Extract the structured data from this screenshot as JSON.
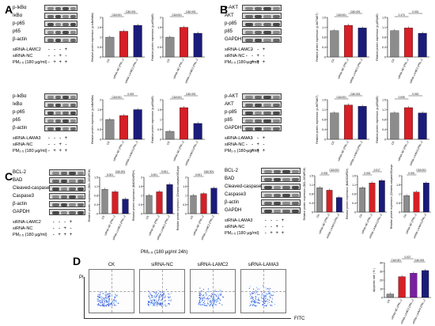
{
  "panels": {
    "A": "A",
    "B": "B",
    "C": "C",
    "D": "D"
  },
  "blots": {
    "a_top": {
      "rows": [
        "p-IκBα",
        "IκBα",
        "p-p65",
        "p65",
        "β-actin"
      ],
      "treatment_labels": [
        "siRNA-LAMC2",
        "siRNA-NC",
        "PM₂.₅ (180 μg/ml)"
      ],
      "treatment_marks": [
        "- - - +",
        "- - + -",
        "- + + +"
      ]
    },
    "a_bottom": {
      "rows": [
        "p-IκBα",
        "IκBα",
        "p-p65",
        "p65",
        "β-actin"
      ],
      "treatment_labels": [
        "siRNA-LAMA3",
        "siRNA-NC",
        "PM₂.₅ (180 μg/ml)"
      ],
      "treatment_marks": [
        "- - - +",
        "- - + -",
        "- + + +"
      ]
    },
    "b_top": {
      "rows": [
        "p-AKT",
        "AKT",
        "p-p85",
        "p85",
        "GAPDH"
      ],
      "treatment_labels": [
        "siRNA-LAMC2",
        "siRNA-NC",
        "PM₂.₅ (180 μg/ml)"
      ],
      "treatment_marks": [
        "- - - +",
        "- - + -",
        "- + + +"
      ]
    },
    "b_bottom": {
      "rows": [
        "p-AKT",
        "AKT",
        "p-p85",
        "p85",
        "GAPDH"
      ],
      "treatment_labels": [
        "siRNA-LAMA3",
        "siRNA-NC",
        "PM₂.₅ (180 μg/ml)"
      ],
      "treatment_marks": [
        "- - - +",
        "- - + -",
        "- + + +"
      ]
    },
    "c_left": {
      "rows": [
        "BCL-2",
        "BAD",
        "Cleaved-caspase3",
        "Caspase3",
        "β-actin",
        "GAPDH"
      ],
      "treatment_labels": [
        "siRNA-LAMC2",
        "siRNA-NC",
        "PM₂.₅ (180 μg/ml)"
      ],
      "treatment_marks": [
        "- - - +",
        "- - + -",
        "- + + +"
      ]
    },
    "c_right": {
      "rows": [
        "BCL-2",
        "BAD",
        "Cleaved-caspase3",
        "Caspase3",
        "β-actin",
        "GAPDH"
      ],
      "treatment_labels": [
        "siRNA-LAMA3",
        "siRNA-NC",
        "PM₂.₅ (180 μg/ml)"
      ],
      "treatment_marks": [
        "- - - +",
        "- - + -",
        "- + + +"
      ]
    }
  },
  "common": {
    "categories_c2": [
      "CK",
      "siRNA-NC (PM₂.₅)",
      "siRNA-LAMC2 (PM₂.₅)"
    ],
    "categories_a3": [
      "CK",
      "siRNA-NC (PM₂.₅)",
      "siRNA-LAMA3 (PM₂.₅)"
    ],
    "colors": [
      "#8c8c8c",
      "#d61f26",
      "#1b1b7a"
    ],
    "pm_caption": "PM₂.₅ (180 μg/ml 24h)"
  },
  "chart_data": [
    {
      "id": "A1",
      "type": "bar",
      "ylabel": "Relative protein expression (p-IκBα/IκBα)",
      "values": [
        1.0,
        1.3,
        1.6
      ],
      "ylim": [
        0,
        2
      ],
      "sig": [
        "C&0.001",
        "C&0.001"
      ]
    },
    {
      "id": "A2",
      "type": "bar",
      "ylabel": "Relative protein expression (p-p65/p65)",
      "values": [
        1.0,
        1.5,
        1.2
      ],
      "ylim": [
        0,
        2
      ],
      "sig": [
        "C&0.001",
        "C&0.001"
      ]
    },
    {
      "id": "A3",
      "type": "bar",
      "ylabel": "Relative protein expression (p-IκBα/IκBα)",
      "values": [
        1.0,
        1.2,
        1.5
      ],
      "ylim": [
        0,
        2
      ],
      "sig": [
        "C&0.001",
        "0.019"
      ]
    },
    {
      "id": "A4",
      "type": "bar",
      "ylabel": "Relative protein expression (p-p65/p65)",
      "values": [
        0.4,
        1.6,
        0.8
      ],
      "ylim": [
        0,
        2
      ],
      "sig": [
        "C&0.001",
        "C&0.001"
      ]
    },
    {
      "id": "B1",
      "type": "bar",
      "ylabel": "Relative protein expression (p-AKT/AKT)",
      "values": [
        1.0,
        1.2,
        1.1
      ],
      "ylim": [
        0,
        1.5
      ],
      "sig": [
        "C&0.001",
        "C&0.001"
      ]
    },
    {
      "id": "B2",
      "type": "bar",
      "ylabel": "Relative protein expression (p-p85/p85)",
      "values": [
        1.0,
        1.1,
        0.9
      ],
      "ylim": [
        0,
        1.5
      ],
      "sig": [
        "0.174",
        "0.031"
      ]
    },
    {
      "id": "B3",
      "type": "bar",
      "ylabel": "Relative protein expression (p-AKT/AKT)",
      "values": [
        1.0,
        1.3,
        1.25
      ],
      "ylim": [
        0,
        1.5
      ],
      "sig": [
        "C&0.001",
        "C&0.001"
      ]
    },
    {
      "id": "B4",
      "type": "bar",
      "ylabel": "Relative protein expression (p-p85/p85)",
      "values": [
        1.0,
        1.2,
        1.0
      ],
      "ylim": [
        0,
        1.5
      ],
      "sig": [
        "0.005",
        "0.015"
      ]
    },
    {
      "id": "C1",
      "type": "bar",
      "ylabel": "Relative protein expression (BCL-2/GAPDH)",
      "values": [
        1.0,
        0.9,
        0.6
      ],
      "ylim": [
        0,
        1.5
      ],
      "sig": [
        "0.001",
        "C&0.001"
      ]
    },
    {
      "id": "C2",
      "type": "bar",
      "ylabel": "Relative protein expression (BAD/GAPDH)",
      "values": [
        1.0,
        1.2,
        1.6
      ],
      "ylim": [
        0,
        2
      ],
      "sig": [
        "0.001",
        "0.001"
      ]
    },
    {
      "id": "C3",
      "type": "bar",
      "ylabel": "Relative protein expression (Cleaved-caspase3/Caspase3)",
      "values": [
        1.0,
        1.1,
        1.4
      ],
      "ylim": [
        0,
        2
      ],
      "sig": [
        "0.001",
        "C&0.001"
      ]
    },
    {
      "id": "C4",
      "type": "bar",
      "ylabel": "Relative protein expression (BCL-2/GAPDH)",
      "values": [
        1.0,
        0.9,
        0.6
      ],
      "ylim": [
        0,
        1.5
      ],
      "sig": [
        "0.002",
        "C&0.001"
      ]
    },
    {
      "id": "C5",
      "type": "bar",
      "ylabel": "Relative protein expression (BAD/GAPDH)",
      "values": [
        1.0,
        1.2,
        1.3
      ],
      "ylim": [
        0,
        1.5
      ],
      "sig": [
        "0.015",
        "0.017"
      ]
    },
    {
      "id": "C6",
      "type": "bar",
      "ylabel": "Relative protein expression (Cleaved-caspase3/Caspase3)",
      "values": [
        0.9,
        1.1,
        1.6
      ],
      "ylim": [
        0,
        2
      ],
      "sig": [
        "0.001",
        "C&0.001"
      ]
    },
    {
      "id": "D1",
      "type": "bar",
      "ylabel": "Apoptosis rate ( % )",
      "values": [
        4,
        24,
        28,
        31
      ],
      "ylim": [
        0,
        40
      ],
      "sig": [
        "C&0.001",
        "0.027",
        "C&0.001"
      ]
    }
  ],
  "flow": {
    "titles": [
      "CK",
      "siRNA-NC",
      "siRNA-LAMC2",
      "siRNA-LAMA3"
    ],
    "y_axis": "PI",
    "x_axis": "FITC"
  }
}
